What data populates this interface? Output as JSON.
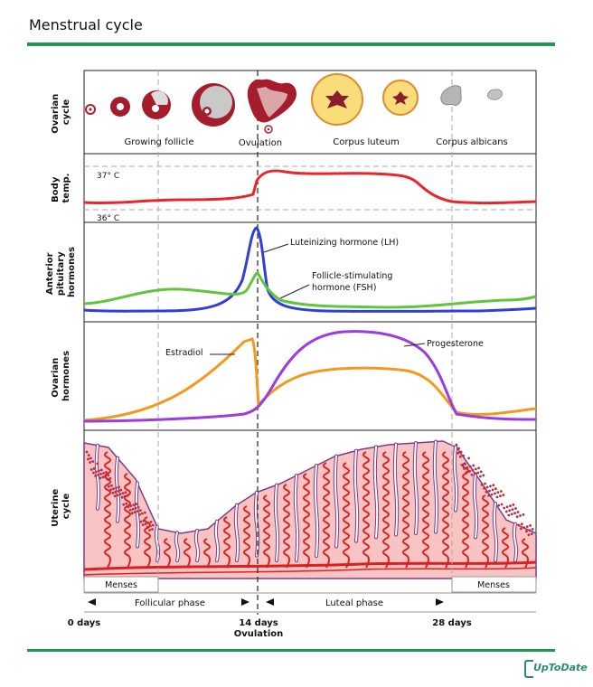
{
  "page": {
    "title": "Menstrual cycle"
  },
  "panels": {
    "ovarian_cycle": {
      "label_lines": [
        "Ovarian",
        "cycle"
      ],
      "stages": [
        "Growing follicle",
        "Ovulation",
        "Corpus luteum",
        "Corpus albicans"
      ]
    },
    "body_temp": {
      "label_lines": [
        "Body",
        "temp."
      ],
      "high": "37° C",
      "low": "36° C"
    },
    "pituitary": {
      "label_lines": [
        "Anterior",
        "pituitary",
        "hormones"
      ],
      "lh": "Luteinizing hormone (LH)",
      "fsh_lines": [
        "Follicle-stimulating",
        "hormone (FSH)"
      ]
    },
    "ovarian_hormones": {
      "label_lines": [
        "Ovarian",
        "hormones"
      ],
      "estradiol": "Estradiol",
      "progesterone": "Progesterone"
    },
    "uterine": {
      "label_lines": [
        "Uterine",
        "cycle"
      ],
      "menses_left": "Menses",
      "menses_right": "Menses",
      "follicular": "Follicular phase",
      "luteal": "Luteal phase"
    }
  },
  "axis": {
    "day0": "0 days",
    "day14": "14 days",
    "ovulation": "Ovulation",
    "day28": "28 days"
  },
  "colors": {
    "green_rule": "#1d9a4e",
    "temp": "#e8262b",
    "lh": "#2f3fd8",
    "fsh": "#5fc63a",
    "estradiol": "#f39a1e",
    "progesterone": "#9b3be0",
    "endometrium": "#f8c3c3",
    "vessel": "#d9221f",
    "gland": "#7b3c8c"
  },
  "brand": {
    "name": "UpToDate"
  }
}
